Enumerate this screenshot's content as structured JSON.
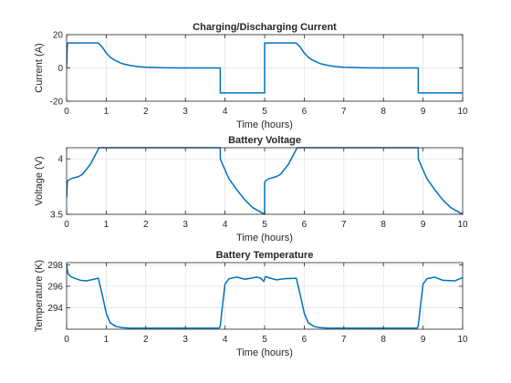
{
  "chart_data": [
    {
      "type": "line",
      "title": "Charging/Discharging Current",
      "xlabel": "Time (hours)",
      "ylabel": "Current (A)",
      "xlim": [
        0,
        10
      ],
      "ylim": [
        -20,
        20
      ],
      "xticks": [
        0,
        1,
        2,
        3,
        4,
        5,
        6,
        7,
        8,
        9,
        10
      ],
      "yticks": [
        -20,
        0,
        20
      ],
      "grid": true,
      "color": "#0072bd",
      "series": [
        {
          "x": [
            0,
            0.02,
            0.8,
            0.9,
            1.0,
            1.1,
            1.2,
            1.4,
            1.6,
            1.8,
            2.0,
            2.5,
            3.0,
            3.88,
            3.88,
            5.0,
            5.0,
            5.8,
            5.9,
            6.0,
            6.1,
            6.2,
            6.4,
            6.6,
            6.8,
            7.0,
            7.5,
            8.0,
            8.88,
            8.88,
            10.0
          ],
          "y": [
            0,
            15,
            15,
            12.5,
            9,
            6.5,
            4.8,
            2.6,
            1.5,
            0.8,
            0.4,
            0.1,
            0,
            0,
            -15,
            -15,
            15,
            15,
            12.5,
            9,
            6.5,
            4.8,
            2.6,
            1.5,
            0.8,
            0.4,
            0.1,
            0,
            0,
            -15,
            -15
          ]
        }
      ]
    },
    {
      "type": "line",
      "title": "Battery Voltage",
      "xlabel": "Time (hours)",
      "ylabel": "Voltage (V)",
      "xlim": [
        0,
        10
      ],
      "ylim": [
        3.5,
        4.1
      ],
      "xticks": [
        0,
        1,
        2,
        3,
        4,
        5,
        6,
        7,
        8,
        9,
        10
      ],
      "yticks": [
        3.5,
        4
      ],
      "grid": true,
      "color": "#0072bd",
      "series": [
        {
          "x": [
            0,
            0.02,
            0.1,
            0.3,
            0.4,
            0.6,
            0.82,
            3.88,
            3.88,
            3.95,
            4.1,
            4.3,
            4.5,
            4.7,
            4.9,
            5.0,
            5.0,
            5.02,
            5.1,
            5.3,
            5.4,
            5.6,
            5.82,
            8.88,
            8.88,
            8.95,
            9.1,
            9.3,
            9.5,
            9.7,
            9.9,
            10.0
          ],
          "y": [
            3.65,
            3.8,
            3.82,
            3.84,
            3.86,
            3.95,
            4.1,
            4.1,
            4.0,
            3.94,
            3.82,
            3.72,
            3.63,
            3.56,
            3.52,
            3.5,
            3.78,
            3.8,
            3.82,
            3.84,
            3.86,
            3.95,
            4.1,
            4.1,
            4.0,
            3.94,
            3.82,
            3.72,
            3.63,
            3.56,
            3.52,
            3.5
          ]
        }
      ]
    },
    {
      "type": "line",
      "title": "Battery Temperature",
      "xlabel": "Time (hours)",
      "ylabel": "Temperature (K)",
      "xlim": [
        0,
        10
      ],
      "ylim": [
        292,
        298.2
      ],
      "xticks": [
        0,
        1,
        2,
        3,
        4,
        5,
        6,
        7,
        8,
        9,
        10
      ],
      "yticks": [
        294,
        296,
        298
      ],
      "grid": true,
      "color": "#0072bd",
      "series": [
        {
          "x": [
            0,
            0.03,
            0.1,
            0.2,
            0.35,
            0.5,
            0.65,
            0.8,
            0.9,
            1.0,
            1.1,
            1.25,
            1.4,
            1.6,
            2.0,
            3.0,
            3.85,
            3.88,
            3.93,
            4.0,
            4.1,
            4.3,
            4.5,
            4.8,
            4.9,
            4.98,
            5.02,
            5.1,
            5.3,
            5.5,
            5.8,
            5.9,
            6.0,
            6.1,
            6.25,
            6.4,
            6.6,
            7.0,
            8.0,
            8.85,
            8.88,
            8.93,
            9.0,
            9.1,
            9.3,
            9.5,
            9.8,
            10.0
          ],
          "y": [
            298.0,
            297.2,
            296.9,
            296.75,
            296.55,
            296.5,
            296.62,
            296.75,
            295.2,
            293.5,
            292.6,
            292.25,
            292.15,
            292.1,
            292.1,
            292.1,
            292.1,
            292.3,
            294.0,
            296.2,
            296.7,
            296.85,
            296.65,
            296.85,
            296.75,
            296.45,
            296.9,
            296.8,
            296.6,
            296.7,
            296.75,
            295.2,
            293.5,
            292.6,
            292.25,
            292.15,
            292.1,
            292.1,
            292.1,
            292.1,
            292.3,
            294.0,
            296.2,
            296.7,
            296.85,
            296.55,
            296.5,
            296.8
          ]
        }
      ]
    }
  ]
}
